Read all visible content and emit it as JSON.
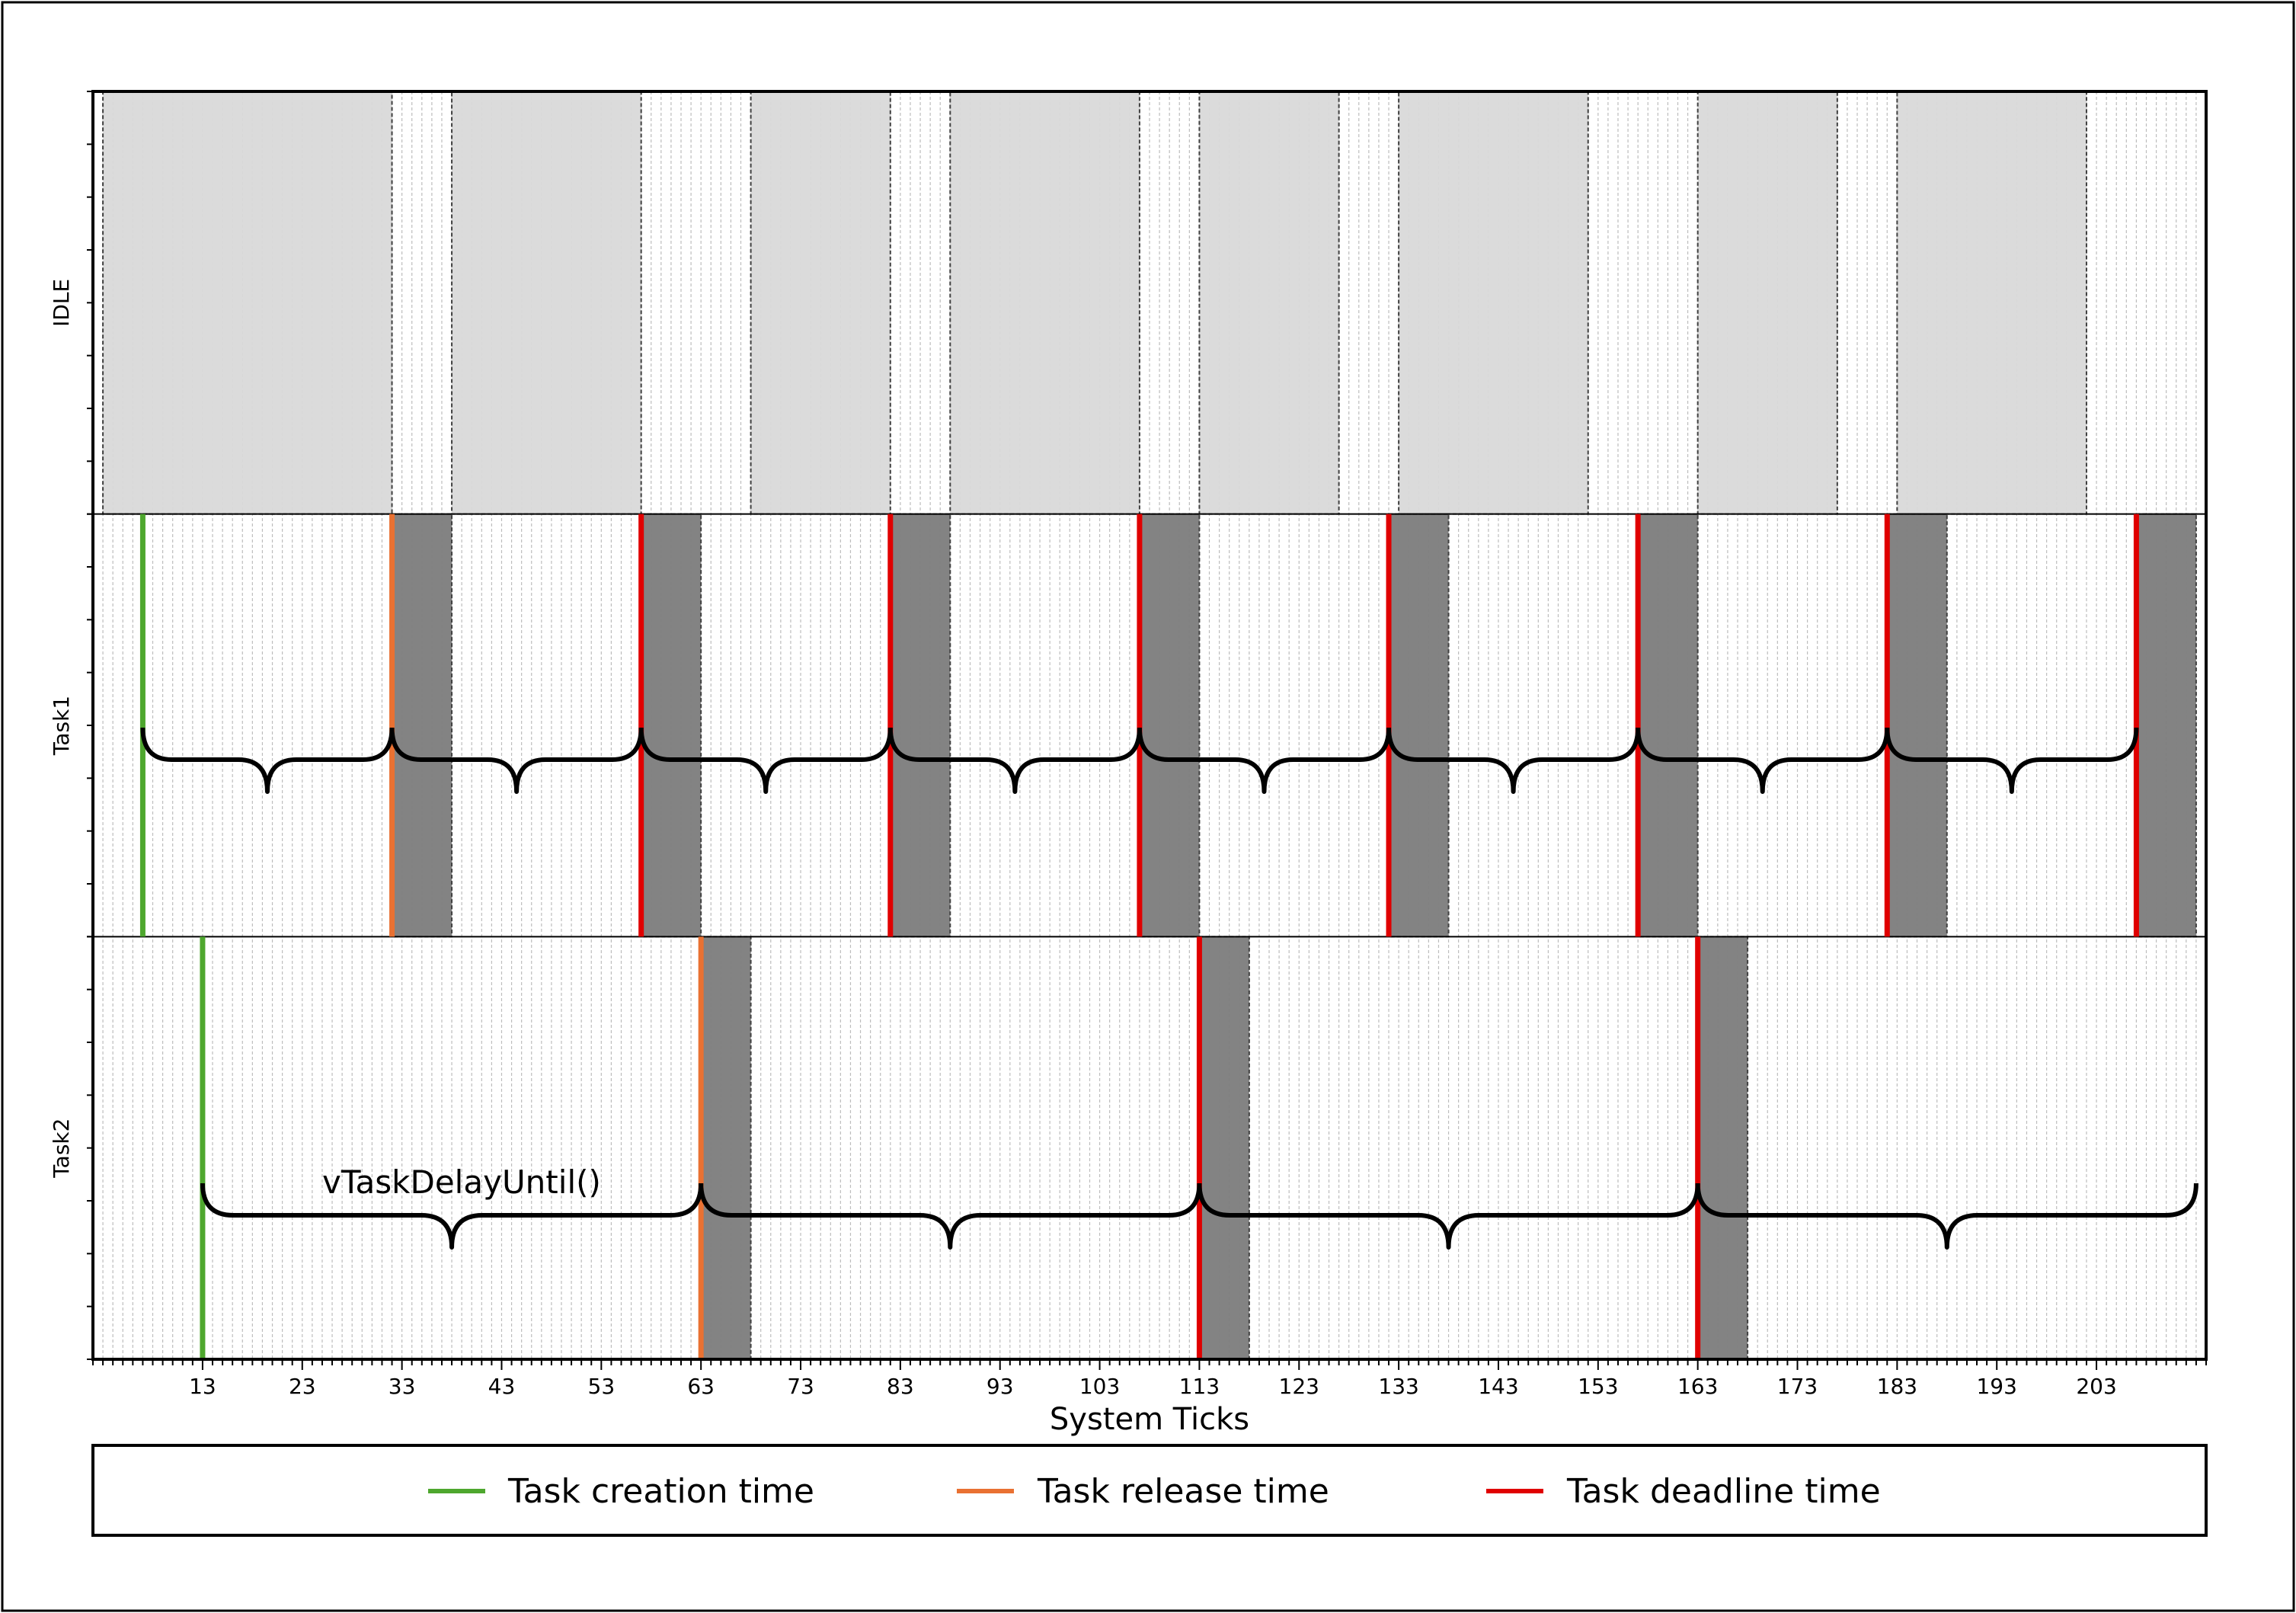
{
  "chart_data": {
    "type": "gantt",
    "xlabel": "System Ticks",
    "x_range": [
      2,
      214
    ],
    "x_tick_labels": [
      "13",
      "23",
      "33",
      "43",
      "53",
      "63",
      "73",
      "83",
      "93",
      "103",
      "113",
      "123",
      "133",
      "143",
      "153",
      "163",
      "173",
      "183",
      "193",
      "203"
    ],
    "rows": [
      "IDLE",
      "Task1",
      "Task2"
    ],
    "execution": {
      "IDLE": [
        [
          3,
          32
        ],
        [
          38,
          57
        ],
        [
          68,
          82
        ],
        [
          88,
          107
        ],
        [
          113,
          127
        ],
        [
          133,
          152
        ],
        [
          163,
          177
        ],
        [
          183,
          202
        ]
      ],
      "Task1": [
        [
          32,
          38
        ],
        [
          57,
          63
        ],
        [
          82,
          88
        ],
        [
          107,
          113
        ],
        [
          132,
          138
        ],
        [
          157,
          163
        ],
        [
          182,
          188
        ],
        [
          207,
          213
        ]
      ],
      "Task2": [
        [
          63,
          68
        ],
        [
          113,
          118
        ],
        [
          163,
          168
        ]
      ]
    },
    "markers": {
      "Task1": {
        "creation": [
          7
        ],
        "release": [
          32
        ],
        "deadline": [
          57,
          82,
          107,
          132,
          157,
          182,
          207
        ]
      },
      "Task2": {
        "creation": [
          13
        ],
        "release": [
          63
        ],
        "deadline": [
          113,
          163
        ]
      }
    },
    "periods": {
      "Task1": [
        [
          7,
          32
        ],
        [
          32,
          57
        ],
        [
          57,
          82
        ],
        [
          82,
          107
        ],
        [
          107,
          132
        ],
        [
          132,
          157
        ],
        [
          157,
          182
        ],
        [
          182,
          207
        ]
      ],
      "Task2": [
        [
          13,
          63
        ],
        [
          63,
          113
        ],
        [
          113,
          163
        ],
        [
          163,
          213
        ]
      ]
    },
    "annotation": "vTaskDelayUntil()",
    "legend": {
      "position": "bottom",
      "items": [
        {
          "label": "Task creation time",
          "color": "#4ea72e"
        },
        {
          "label": "Task release time",
          "color": "#e97132"
        },
        {
          "label": "Task deadline time",
          "color": "#e00000"
        }
      ]
    },
    "colors": {
      "idle": "#d9d9d9",
      "task_exec": "#7f7f7f",
      "grid": "#bdbdbd"
    }
  }
}
